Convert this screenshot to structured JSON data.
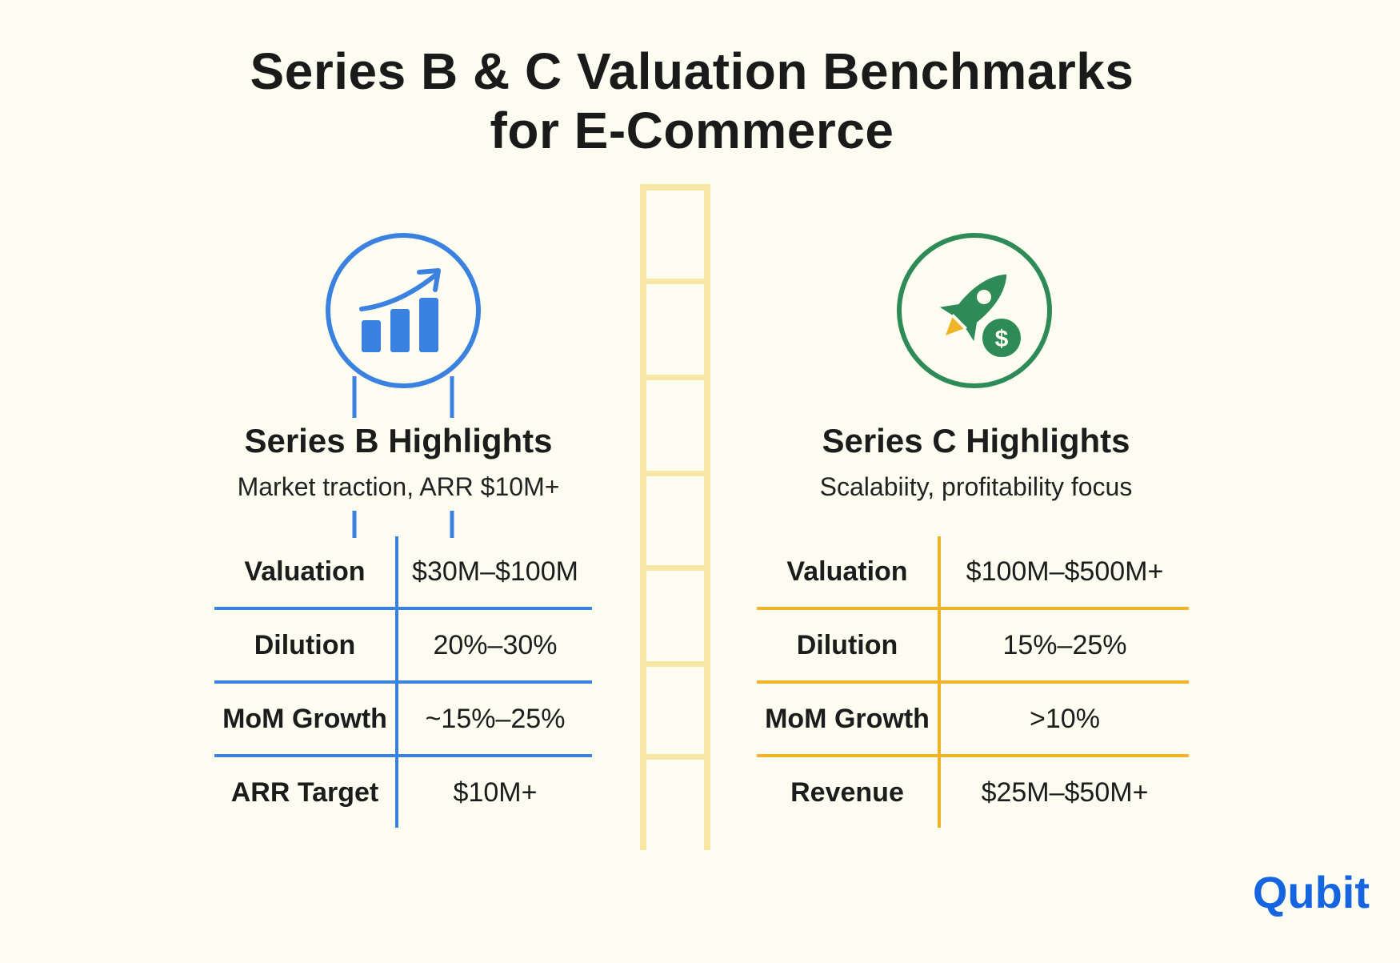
{
  "title": {
    "line1": "Series B & C Valuation Benchmarks",
    "line2": "for E-Commerce"
  },
  "series_b": {
    "icon": "growth-chart-icon",
    "heading": "Series B Highlights",
    "subtitle": "Market traction, ARR $10M+",
    "rows": [
      {
        "label": "Valuation",
        "value": "$30M–$100M"
      },
      {
        "label": "Dilution",
        "value": "20%–30%"
      },
      {
        "label": "MoM Growth",
        "value": "~15%–25%"
      },
      {
        "label": "ARR Target",
        "value": "$10M+"
      }
    ]
  },
  "series_c": {
    "icon": "rocket-dollar-icon",
    "heading": "Series C Highlights",
    "subtitle": "Scalabiity, profitability focus",
    "rows": [
      {
        "label": "Valuation",
        "value": "$100M–$500M+"
      },
      {
        "label": "Dilution",
        "value": "15%–25%"
      },
      {
        "label": "MoM Growth",
        "value": ">10%"
      },
      {
        "label": "Revenue",
        "value": "$25M–$50M+"
      }
    ]
  },
  "logo": {
    "text": "Qubit"
  },
  "colors": {
    "background": "#fdfcf0",
    "series_b_accent": "#3b82e0",
    "series_c_accent": "#f0b429",
    "series_c_icon": "#2e8b57",
    "ladder": "#f7e6a6",
    "logo": "#1565e0"
  }
}
